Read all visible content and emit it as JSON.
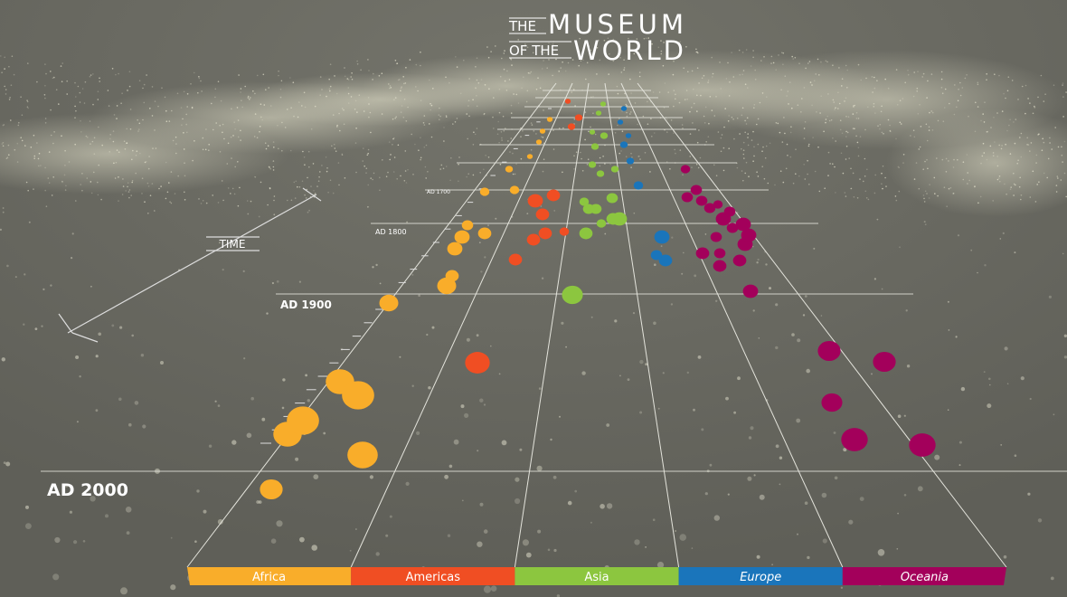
{
  "header": {
    "title_prefix_1": "THE",
    "title_word_1": "MUSEUM",
    "title_prefix_2": "OF THE",
    "title_word_2": "WORLD"
  },
  "axis": {
    "label": "TIME",
    "time_labels": [
      "AD 2000",
      "AD 1900",
      "AD 1800",
      "AD 1700"
    ]
  },
  "regions": [
    {
      "name": "Africa",
      "color": "#f9ad2a"
    },
    {
      "name": "Americas",
      "color": "#f04e23"
    },
    {
      "name": "Asia",
      "color": "#8cc63f"
    },
    {
      "name": "Europe",
      "color": "#1a75bb"
    },
    {
      "name": "Oceania",
      "color": "#a3005b"
    }
  ]
}
